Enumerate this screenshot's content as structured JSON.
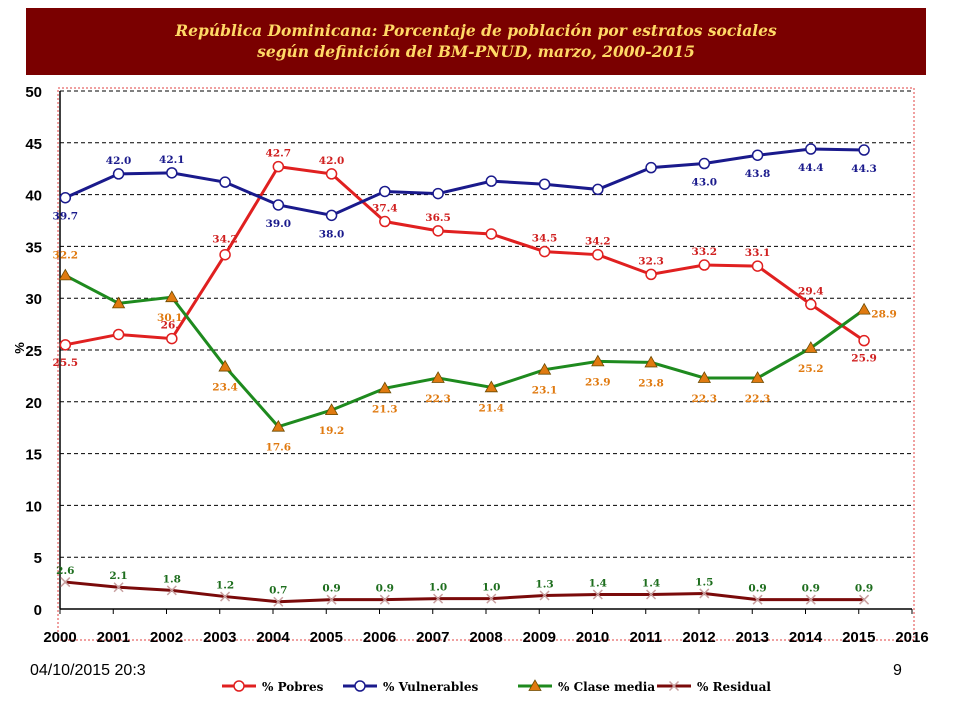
{
  "header": {
    "title_line1": "República Dominicana: Porcentaje de población por estratos sociales",
    "title_line2": "según definición del BM-PNUD, marzo, 2000-2015"
  },
  "footer": {
    "date": "04/10/2015 20:3",
    "page_number": "9"
  },
  "chart_data": {
    "type": "line",
    "title": "República Dominicana: Porcentaje de población por estratos sociales según definición del BM-PNUD, marzo, 2000-2015",
    "ylabel": "%",
    "xlabel": "",
    "ylim": [
      0,
      50
    ],
    "xlim": [
      2000,
      2016
    ],
    "yticks": [
      "0",
      "5",
      "10",
      "15",
      "20",
      "25",
      "30",
      "35",
      "40",
      "45",
      "50"
    ],
    "xticks": [
      "2000",
      "2001",
      "2002",
      "2003",
      "2004",
      "2005",
      "2006",
      "2007",
      "2008",
      "2009",
      "2010",
      "2011",
      "2012",
      "2013",
      "2014",
      "2015",
      "2016"
    ],
    "grid": true,
    "legend_position": "bottom",
    "x": [
      2000.1,
      2001.1,
      2002.1,
      2003.1,
      2004.1,
      2005.1,
      2006.1,
      2007.1,
      2008.1,
      2009.1,
      2010.1,
      2011.1,
      2012.1,
      2013.1,
      2014.1,
      2015.1
    ],
    "series": [
      {
        "name": "% Pobres",
        "color": "#e02020",
        "marker": "circle",
        "values": [
          25.5,
          26.5,
          26.1,
          34.2,
          42.7,
          42.0,
          37.4,
          36.5,
          36.2,
          34.5,
          34.2,
          32.3,
          33.2,
          33.1,
          29.4,
          25.9
        ],
        "labels": [
          "25.5",
          "",
          "26.",
          "34.2",
          "42.7",
          "42.0",
          "37.4",
          "36.5",
          "",
          "34.5",
          "34.2",
          "32.3",
          "33.2",
          "33.1",
          "29.4",
          "25.9"
        ]
      },
      {
        "name": "% Vulnerables",
        "color": "#1a1a8c",
        "marker": "circle",
        "values": [
          39.7,
          42.0,
          42.1,
          41.2,
          39.0,
          38.0,
          40.3,
          40.1,
          41.3,
          41.0,
          40.5,
          42.6,
          43.0,
          43.8,
          44.4,
          44.3
        ],
        "labels": [
          "39.7",
          "42.0",
          "42.1",
          "",
          "39.0",
          "38.0",
          "",
          "",
          "",
          "",
          "",
          "",
          "43.0",
          "43.8",
          "44.4",
          "44.3"
        ]
      },
      {
        "name": "% Clase media",
        "color": "#1e8a1e",
        "marker": "triangle",
        "values": [
          32.2,
          29.5,
          30.1,
          23.4,
          17.6,
          19.2,
          21.3,
          22.3,
          21.4,
          23.1,
          23.9,
          23.8,
          22.3,
          22.3,
          25.2,
          28.9
        ],
        "labels": [
          "32.2",
          "",
          "30.1",
          "23.4",
          "17.6",
          "19.2",
          "21.3",
          "22.3",
          "21.4",
          "23.1",
          "23.9",
          "23.8",
          "22.3",
          "22.3",
          "25.2",
          "28.9"
        ]
      },
      {
        "name": "% Residual",
        "color": "#7a0a0a",
        "marker": "x",
        "values": [
          2.6,
          2.1,
          1.8,
          1.2,
          0.7,
          0.9,
          0.9,
          1.0,
          1.0,
          1.3,
          1.4,
          1.4,
          1.5,
          0.9,
          0.9,
          0.9
        ],
        "labels": [
          "2.6",
          "2.1",
          "1.8",
          "1.2",
          "0.7",
          "0.9",
          "0.9",
          "1.0",
          "1.0",
          "1.3",
          "1.4",
          "1.4",
          "1.5",
          "0.9",
          "0.9",
          "0.9"
        ]
      }
    ]
  }
}
